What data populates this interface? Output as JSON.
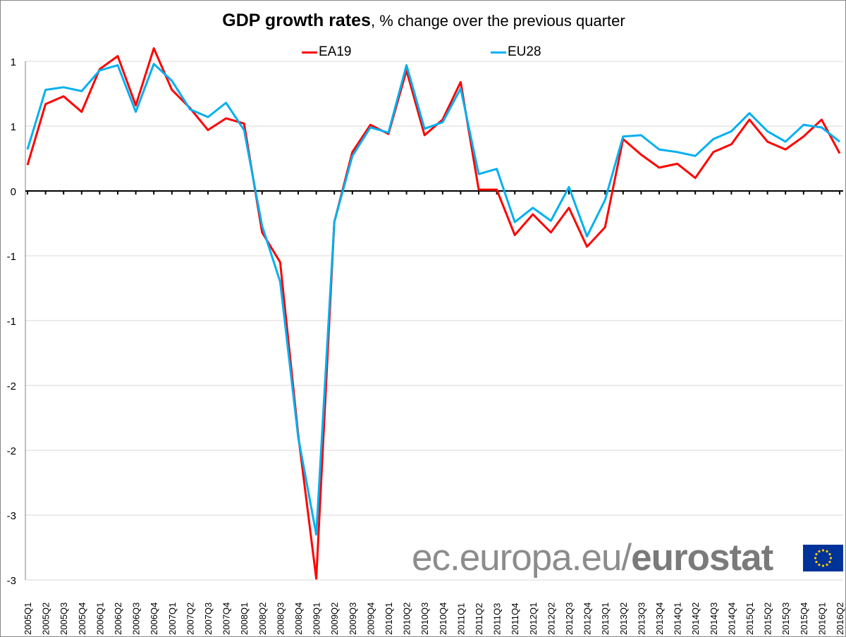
{
  "chart_data": {
    "type": "line",
    "title": "GDP growth rates",
    "subtitle": ", % change over the previous quarter",
    "categories": [
      "2005Q1",
      "2005Q2",
      "2005Q3",
      "2005Q4",
      "2006Q1",
      "2006Q2",
      "2006Q3",
      "2006Q4",
      "2007Q1",
      "2007Q2",
      "2007Q3",
      "2007Q4",
      "2008Q1",
      "2008Q2",
      "2008Q3",
      "2008Q4",
      "2009Q1",
      "2009Q2",
      "2009Q3",
      "2009Q4",
      "2010Q1",
      "2010Q2",
      "2010Q3",
      "2010Q4",
      "2011Q1",
      "2011Q2",
      "2011Q3",
      "2011Q4",
      "2012Q1",
      "2012Q2",
      "2012Q3",
      "2012Q4",
      "2013Q1",
      "2013Q2",
      "2013Q3",
      "2013Q4",
      "2014Q1",
      "2014Q2",
      "2014Q3",
      "2014Q4",
      "2015Q1",
      "2015Q2",
      "2015Q3",
      "2015Q4",
      "2016Q1",
      "2016Q2"
    ],
    "series": [
      {
        "name": "EA19",
        "color": "#ff0000",
        "values": [
          0.2,
          0.67,
          0.73,
          0.61,
          0.94,
          1.04,
          0.66,
          1.1,
          0.78,
          0.64,
          0.47,
          0.56,
          0.52,
          -0.32,
          -0.55,
          -1.88,
          -2.99,
          -0.24,
          0.3,
          0.51,
          0.44,
          0.93,
          0.43,
          0.55,
          0.84,
          0.01,
          0.01,
          -0.34,
          -0.18,
          -0.32,
          -0.13,
          -0.43,
          -0.28,
          0.4,
          0.28,
          0.18,
          0.21,
          0.1,
          0.3,
          0.36,
          0.55,
          0.38,
          0.32,
          0.42,
          0.55,
          0.29
        ]
      },
      {
        "name": "EU28",
        "color": "#00b0f0",
        "values": [
          0.32,
          0.78,
          0.8,
          0.77,
          0.93,
          0.97,
          0.61,
          0.98,
          0.85,
          0.63,
          0.57,
          0.68,
          0.47,
          -0.27,
          -0.7,
          -1.9,
          -2.65,
          -0.24,
          0.27,
          0.49,
          0.45,
          0.97,
          0.48,
          0.53,
          0.79,
          0.13,
          0.17,
          -0.24,
          -0.13,
          -0.23,
          0.03,
          -0.35,
          -0.07,
          0.42,
          0.43,
          0.32,
          0.3,
          0.27,
          0.4,
          0.46,
          0.6,
          0.46,
          0.38,
          0.51,
          0.49,
          0.38
        ]
      }
    ],
    "yticks": [
      1.0,
      0.5,
      0,
      -0.5,
      -1.0,
      -1.5,
      -2.0,
      -2.5,
      -3.0
    ],
    "ytick_labels": [
      "1",
      "1",
      "0",
      "-1",
      "-1",
      "-2",
      "-2",
      "-3",
      "-3"
    ],
    "ylim": [
      -3.0,
      1.0
    ],
    "grid": true,
    "legend": "top-center"
  },
  "logo": {
    "text_light": "ec.europa.eu/",
    "text_bold": "eurostat"
  }
}
